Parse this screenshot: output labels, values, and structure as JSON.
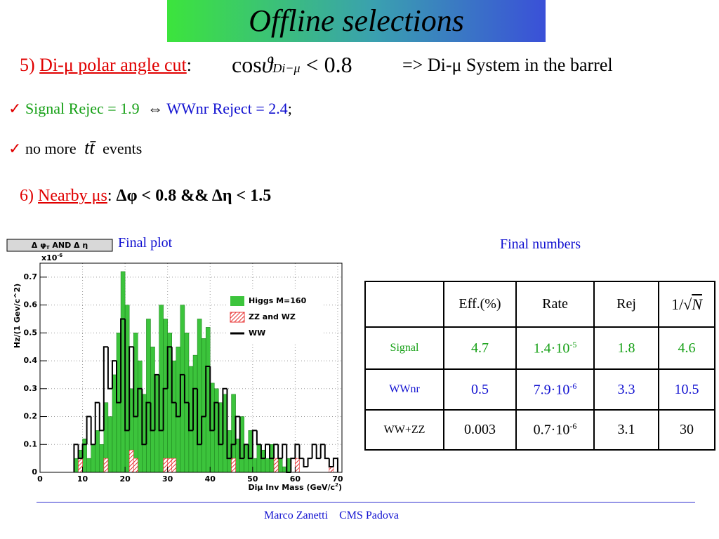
{
  "header": {
    "title": "Offline selections"
  },
  "cut5": {
    "number": "5)",
    "name": "Di-μ polar angle cut",
    "colon": ":",
    "formula": {
      "cos": "cos",
      "theta": "ϑ",
      "sub": "Di−μ",
      "rhs": "< 0.8"
    },
    "comment": "=> Di-μ System in the barrel"
  },
  "check1": {
    "signal": "Signal Rejec = 1.9",
    "arrow": "⇔",
    "wwnr": "WWnr Reject = 2.4",
    "end": ";"
  },
  "check2": {
    "pre": "no more",
    "ttbar": "tt̄",
    "post": "events"
  },
  "cut6": {
    "number": "6)",
    "name": "Nearby μs",
    "colon": ":",
    "formula": "Δφ < 0.8 && Δη < 1.5"
  },
  "captions": {
    "plot": "Final plot",
    "numbers": "Final numbers"
  },
  "table": {
    "header": [
      "Eff.(%)",
      "Rate",
      "Rej"
    ],
    "header_last": {
      "pre": "1/√",
      "var": "N"
    },
    "rows": [
      {
        "label": "Signal",
        "eff": "4.7",
        "rate": "1.4·10",
        "rate_exp": "-5",
        "rej": "1.8",
        "inv_sqrt_n": "4.6"
      },
      {
        "label": "WWnr",
        "eff": "0.5",
        "rate": "7.9·10",
        "rate_exp": "-6",
        "rej": "3.3",
        "inv_sqrt_n": "10.5"
      },
      {
        "label": "WW+ZZ",
        "eff": "0.003",
        "rate": "0.7·10",
        "rate_exp": "-6",
        "rej": "3.1",
        "inv_sqrt_n": "30"
      }
    ]
  },
  "footer": {
    "author": "Marco Zanetti",
    "place": "CMS Padova"
  },
  "chart_data": {
    "type": "histogram",
    "title_parts": [
      "Δ φ",
      "T",
      " AND Δ η"
    ],
    "ylabel": "Hz/(1 Gev/c^2)",
    "multiplier": {
      "base": "x10",
      "exp": "-6"
    },
    "xlabel_parts": [
      "Diμ Inv Mass (GeV/c",
      "2",
      ")"
    ],
    "xlim": [
      0,
      71
    ],
    "ylim": [
      0,
      0.75
    ],
    "xticks": [
      0,
      10,
      20,
      30,
      40,
      50,
      60,
      70
    ],
    "yticks": [
      0,
      0.1,
      0.2,
      0.3,
      0.4,
      0.5,
      0.6,
      0.7
    ],
    "grid": true,
    "legend": "upper right",
    "bins": [
      8,
      9,
      10,
      11,
      12,
      13,
      14,
      15,
      16,
      17,
      18,
      19,
      20,
      21,
      22,
      23,
      24,
      25,
      26,
      27,
      28,
      29,
      30,
      31,
      32,
      33,
      34,
      35,
      36,
      37,
      38,
      39,
      40,
      41,
      42,
      43,
      44,
      45,
      46,
      47,
      48,
      49,
      50,
      51,
      52,
      53,
      54,
      55,
      56,
      57,
      58,
      59,
      60,
      61,
      62,
      63,
      64,
      65,
      66,
      67,
      68,
      69,
      70
    ],
    "series": [
      {
        "name": "Higgs M=160",
        "color": "#3cc43c",
        "histtype": "bar",
        "values": [
          0.05,
          0.08,
          0.12,
          0.05,
          0.1,
          0.15,
          0.1,
          0.25,
          0.2,
          0.35,
          0.5,
          0.72,
          0.6,
          0.3,
          0.5,
          0.4,
          0.28,
          0.55,
          0.45,
          0.35,
          0.6,
          0.55,
          0.5,
          0.4,
          0.45,
          0.6,
          0.5,
          0.38,
          0.42,
          0.55,
          0.48,
          0.52,
          0.32,
          0.3,
          0.25,
          0.28,
          0.15,
          0.28,
          0.12,
          0.2,
          0.1,
          0.15,
          0.05,
          0.1,
          0.08,
          0.05,
          0.1,
          0.03,
          0.05,
          0.02,
          0.05,
          0,
          0,
          0,
          0,
          0,
          0,
          0,
          0,
          0,
          0,
          0
        ]
      },
      {
        "name": "ZZ and WZ",
        "color": "#e83030",
        "histtype": "hatch",
        "values": [
          0,
          0.05,
          0,
          0,
          0,
          0,
          0,
          0.05,
          0,
          0,
          0,
          0,
          0,
          0.08,
          0.05,
          0,
          0,
          0,
          0,
          0,
          0,
          0.05,
          0.05,
          0.05,
          0,
          0,
          0,
          0,
          0,
          0,
          0,
          0,
          0,
          0,
          0,
          0,
          0,
          0.05,
          0,
          0,
          0,
          0,
          0,
          0,
          0,
          0,
          0,
          0.05,
          0,
          0,
          0,
          0,
          0.05,
          0,
          0,
          0,
          0,
          0,
          0,
          0,
          0.02,
          0
        ]
      },
      {
        "name": "WW",
        "color": "#000000",
        "histtype": "step",
        "values": [
          0.1,
          0.05,
          0.1,
          0.2,
          0.1,
          0.25,
          0.15,
          0.45,
          0.3,
          0.4,
          0.25,
          0.55,
          0.15,
          0.45,
          0.2,
          0.3,
          0.1,
          0.25,
          0.15,
          0.35,
          0.15,
          0.3,
          0.45,
          0.25,
          0.2,
          0.35,
          0.25,
          0.15,
          0.3,
          0.1,
          0.2,
          0.38,
          0.15,
          0.25,
          0.1,
          0.3,
          0.05,
          0.1,
          0.2,
          0.05,
          0.1,
          0.05,
          0.15,
          0.1,
          0.05,
          0.1,
          0.05,
          0.1,
          0.05,
          0.1,
          0,
          0.05,
          0.1,
          0.05,
          0.02,
          0.05,
          0.1,
          0.05,
          0.1,
          0.05,
          0.02,
          0.05
        ]
      }
    ]
  }
}
